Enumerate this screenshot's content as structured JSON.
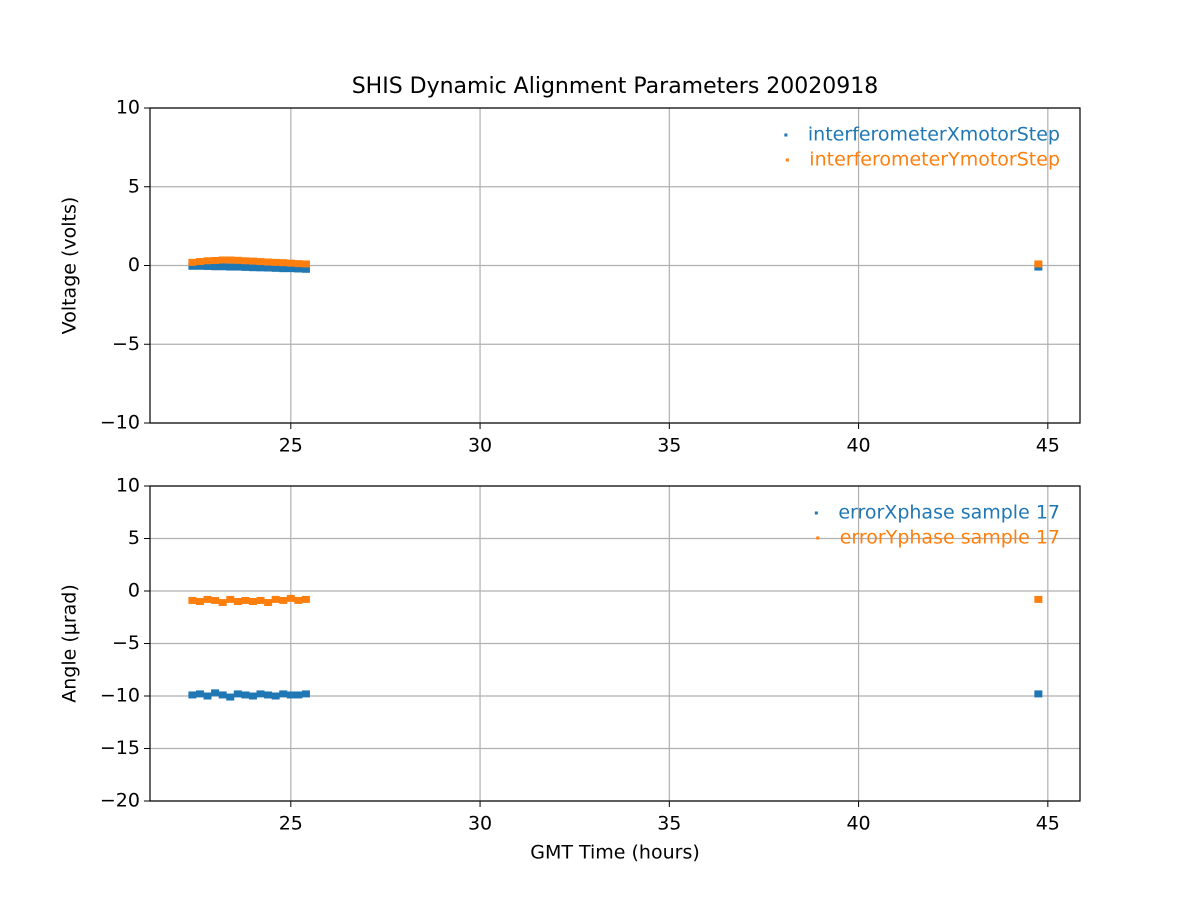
{
  "chart_data": [
    {
      "type": "scatter",
      "title": "SHIS Dynamic Alignment Parameters 20020918",
      "y_label": "Voltage (volts)",
      "x": [
        22.4,
        22.6,
        22.8,
        23.0,
        23.2,
        23.4,
        23.6,
        23.8,
        24.0,
        24.2,
        24.4,
        24.6,
        24.8,
        25.0,
        25.2,
        25.4,
        44.75
      ],
      "series": [
        {
          "name": "interferometerXmotorStep",
          "color": "#1f77b4",
          "values": [
            -0.05,
            -0.05,
            -0.06,
            -0.08,
            -0.08,
            -0.1,
            -0.1,
            -0.12,
            -0.14,
            -0.15,
            -0.16,
            -0.18,
            -0.2,
            -0.2,
            -0.22,
            -0.24,
            -0.1
          ]
        },
        {
          "name": "interferometerYmotorStep",
          "color": "#ff7f0e",
          "values": [
            0.2,
            0.25,
            0.3,
            0.32,
            0.35,
            0.35,
            0.33,
            0.3,
            0.28,
            0.25,
            0.22,
            0.2,
            0.18,
            0.15,
            0.12,
            0.1,
            0.1
          ]
        }
      ],
      "xlim": [
        21.28,
        45.85
      ],
      "xticks": [
        25,
        30,
        35,
        40,
        45
      ],
      "ylim": [
        -10,
        10
      ],
      "yticks": [
        {
          "value": -10,
          "label": "−10"
        },
        {
          "value": -5,
          "label": "−5"
        },
        0,
        5,
        10
      ],
      "grid": true,
      "legend": "upper right"
    },
    {
      "type": "scatter",
      "x_label": "GMT Time (hours)",
      "y_label": "Angle (μrad)",
      "x": [
        22.4,
        22.6,
        22.8,
        23.0,
        23.2,
        23.4,
        23.6,
        23.8,
        24.0,
        24.2,
        24.4,
        24.6,
        24.8,
        25.0,
        25.2,
        25.4,
        44.75
      ],
      "series": [
        {
          "name": "errorXphase sample 17",
          "color": "#1f77b4",
          "values": [
            -9.9,
            -9.8,
            -10,
            -9.7,
            -9.9,
            -10.1,
            -9.8,
            -9.9,
            -10,
            -9.8,
            -9.9,
            -10,
            -9.8,
            -9.9,
            -9.9,
            -9.8,
            -9.8
          ]
        },
        {
          "name": "errorYphase sample 17",
          "color": "#ff7f0e",
          "values": [
            -0.9,
            -1,
            -0.8,
            -0.9,
            -1.1,
            -0.8,
            -1,
            -0.9,
            -1,
            -0.9,
            -1.1,
            -0.8,
            -0.9,
            -0.7,
            -0.9,
            -0.8,
            -0.8
          ]
        }
      ],
      "xlim": [
        21.28,
        45.85
      ],
      "xticks": [
        25,
        30,
        35,
        40,
        45
      ],
      "ylim": [
        -20,
        10
      ],
      "yticks": [
        {
          "value": -20,
          "label": "−20"
        },
        {
          "value": -15,
          "label": "−15"
        },
        {
          "value": -10,
          "label": "−10"
        },
        {
          "value": -5,
          "label": "−5"
        },
        0,
        5,
        10
      ],
      "grid": true,
      "legend": "upper right"
    }
  ]
}
